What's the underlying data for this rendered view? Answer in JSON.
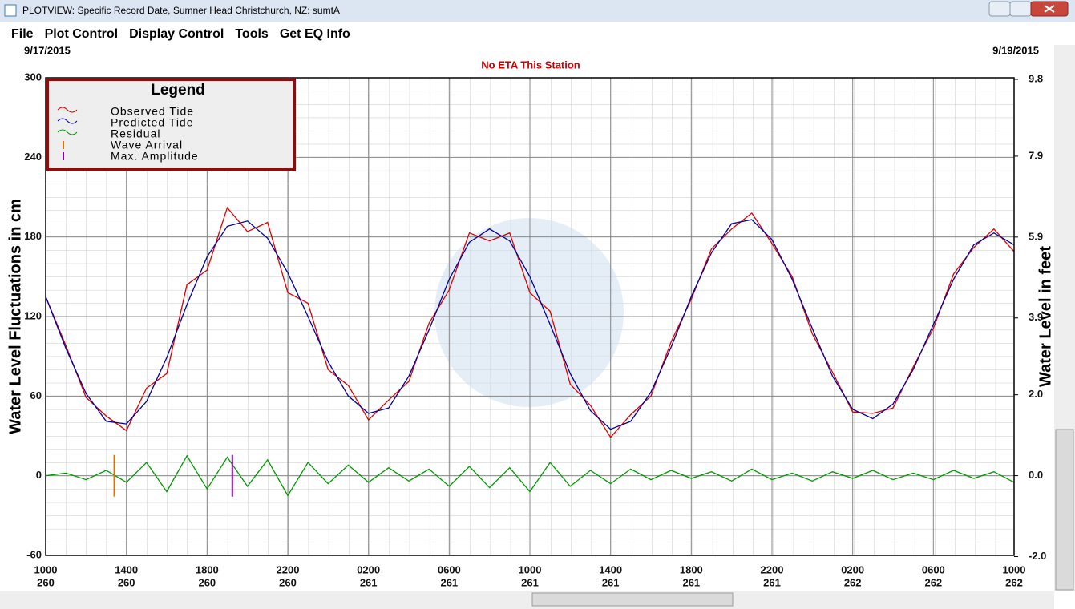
{
  "window": {
    "title": "PLOTVIEW: Specific Record Date, Sumner Head Christchurch, NZ: sumtA"
  },
  "menu": [
    "File",
    "Plot Control",
    "Display Control",
    "Tools",
    "Get EQ Info"
  ],
  "chart_data": {
    "type": "line",
    "start_date": "9/17/2015",
    "end_date": "9/19/2015",
    "subtitle": "No ETA This Station",
    "ylabel": "Water Level Fluctuations in cm",
    "y2label": "Water Level in feet",
    "legend_title": "Legend",
    "xlim": [
      0,
      48
    ],
    "xticks": [
      {
        "value": 0,
        "label": "1000"
      },
      {
        "value": 4,
        "label": "1400"
      },
      {
        "value": 8,
        "label": "1800"
      },
      {
        "value": 12,
        "label": "2200"
      },
      {
        "value": 16,
        "label": "0200"
      },
      {
        "value": 20,
        "label": "0600"
      },
      {
        "value": 24,
        "label": "1000"
      },
      {
        "value": 28,
        "label": "1400"
      },
      {
        "value": 32,
        "label": "1800"
      },
      {
        "value": 36,
        "label": "2200"
      },
      {
        "value": 40,
        "label": "0200"
      },
      {
        "value": 44,
        "label": "0600"
      },
      {
        "value": 48,
        "label": "1000"
      }
    ],
    "xtick_days": [
      "260",
      "260",
      "260",
      "260",
      "261",
      "261",
      "261",
      "261",
      "261",
      "261",
      "262",
      "262",
      "262"
    ],
    "ylim": [
      -60,
      300
    ],
    "yticks": [
      -60,
      0,
      60,
      120,
      180,
      240,
      300
    ],
    "y2lim": [
      -1.97,
      9.84
    ],
    "y2ticks": [
      {
        "value": -2.0,
        "label": "-2.0"
      },
      {
        "value": 0.0,
        "label": "0.0"
      },
      {
        "value": 2.0,
        "label": "2.0"
      },
      3.9,
      5.9,
      7.9,
      9.8
    ],
    "grid": true,
    "x": [
      0,
      1,
      2,
      3,
      4,
      5,
      6,
      7,
      8,
      9,
      10,
      11,
      12,
      13,
      14,
      15,
      16,
      17,
      18,
      19,
      20,
      21,
      22,
      23,
      24,
      25,
      26,
      27,
      28,
      29,
      30,
      31,
      32,
      33,
      34,
      35,
      36,
      37,
      38,
      39,
      40,
      41,
      42,
      43,
      44,
      45,
      46,
      47,
      48
    ],
    "series": [
      {
        "name": "Observed Tide",
        "color": "#dd0000",
        "values": [
          135,
          98,
          59,
          45,
          34,
          66,
          77,
          144,
          155,
          202,
          184,
          191,
          138,
          130,
          80,
          68,
          42,
          57,
          71,
          115,
          140,
          183,
          177,
          183,
          138,
          124,
          69,
          53,
          29,
          46,
          60,
          101,
          133,
          171,
          186,
          198,
          175,
          150,
          107,
          78,
          48,
          47,
          51,
          82,
          111,
          152,
          172,
          186,
          169
        ]
      },
      {
        "name": "Predicted Tide",
        "color": "#000099",
        "values": [
          135,
          96,
          62,
          41,
          39,
          56,
          89,
          129,
          165,
          188,
          192,
          179,
          153,
          120,
          86,
          60,
          47,
          51,
          75,
          110,
          148,
          176,
          186,
          177,
          150,
          114,
          77,
          49,
          35,
          41,
          63,
          97,
          135,
          168,
          190,
          193,
          178,
          148,
          111,
          75,
          50,
          43,
          54,
          80,
          114,
          148,
          174,
          183,
          174
        ]
      },
      {
        "name": "Residual",
        "color": "#009900",
        "values": [
          0,
          2,
          -3,
          4,
          -5,
          10,
          -12,
          15,
          -10,
          14,
          -8,
          12,
          -15,
          10,
          -6,
          8,
          -5,
          6,
          -4,
          5,
          -8,
          7,
          -9,
          6,
          -12,
          10,
          -8,
          4,
          -6,
          5,
          -3,
          4,
          -2,
          3,
          -4,
          5,
          -3,
          2,
          -4,
          3,
          -2,
          4,
          -3,
          2,
          -3,
          4,
          -2,
          3,
          -5
        ]
      }
    ],
    "events": [
      {
        "name": "Wave Arrival",
        "color": "#e07000",
        "x": 3.4
      },
      {
        "name": "Max. Amplitude",
        "color": "#8800aa",
        "x": 9.25
      }
    ]
  }
}
